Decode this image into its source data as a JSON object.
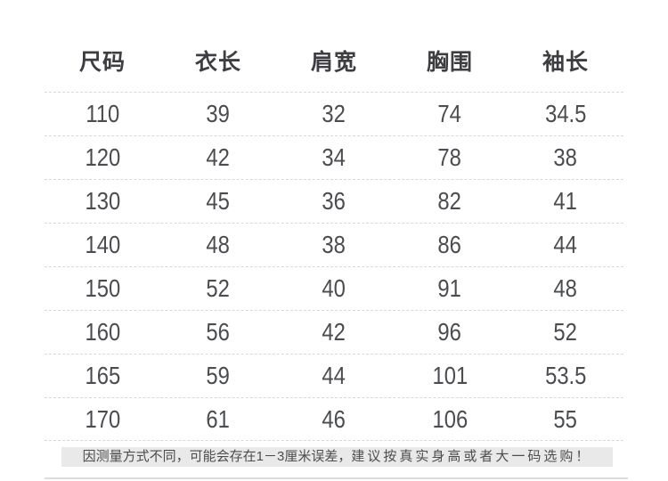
{
  "chart_data": {
    "type": "table",
    "columns": [
      "尺码",
      "衣长",
      "肩宽",
      "胸围",
      "袖长"
    ],
    "rows": [
      [
        "110",
        "39",
        "32",
        "74",
        "34.5"
      ],
      [
        "120",
        "42",
        "34",
        "78",
        "38"
      ],
      [
        "130",
        "45",
        "36",
        "82",
        "41"
      ],
      [
        "140",
        "48",
        "38",
        "86",
        "44"
      ],
      [
        "150",
        "52",
        "40",
        "91",
        "48"
      ],
      [
        "160",
        "56",
        "42",
        "96",
        "52"
      ],
      [
        "165",
        "59",
        "44",
        "101",
        "53.5"
      ],
      [
        "170",
        "61",
        "46",
        "106",
        "55"
      ]
    ],
    "units": "厘米",
    "layout": "size chart table with dashed row separators, no vertical gridlines"
  },
  "footer": {
    "note_part1": "因测量方式不同，可能会存在1－3厘米误差，",
    "note_part2": "建议按真实身高或者大一码选购！"
  },
  "colors": {
    "background": "#ffffff",
    "header_text": "#3e3e42",
    "value_text": "#4a4c50",
    "dashed_line": "#d9d9d9",
    "note_background": "#e9e9e9",
    "note_text": "#4d4d4d",
    "bottom_divider": "#dcdcdc"
  }
}
